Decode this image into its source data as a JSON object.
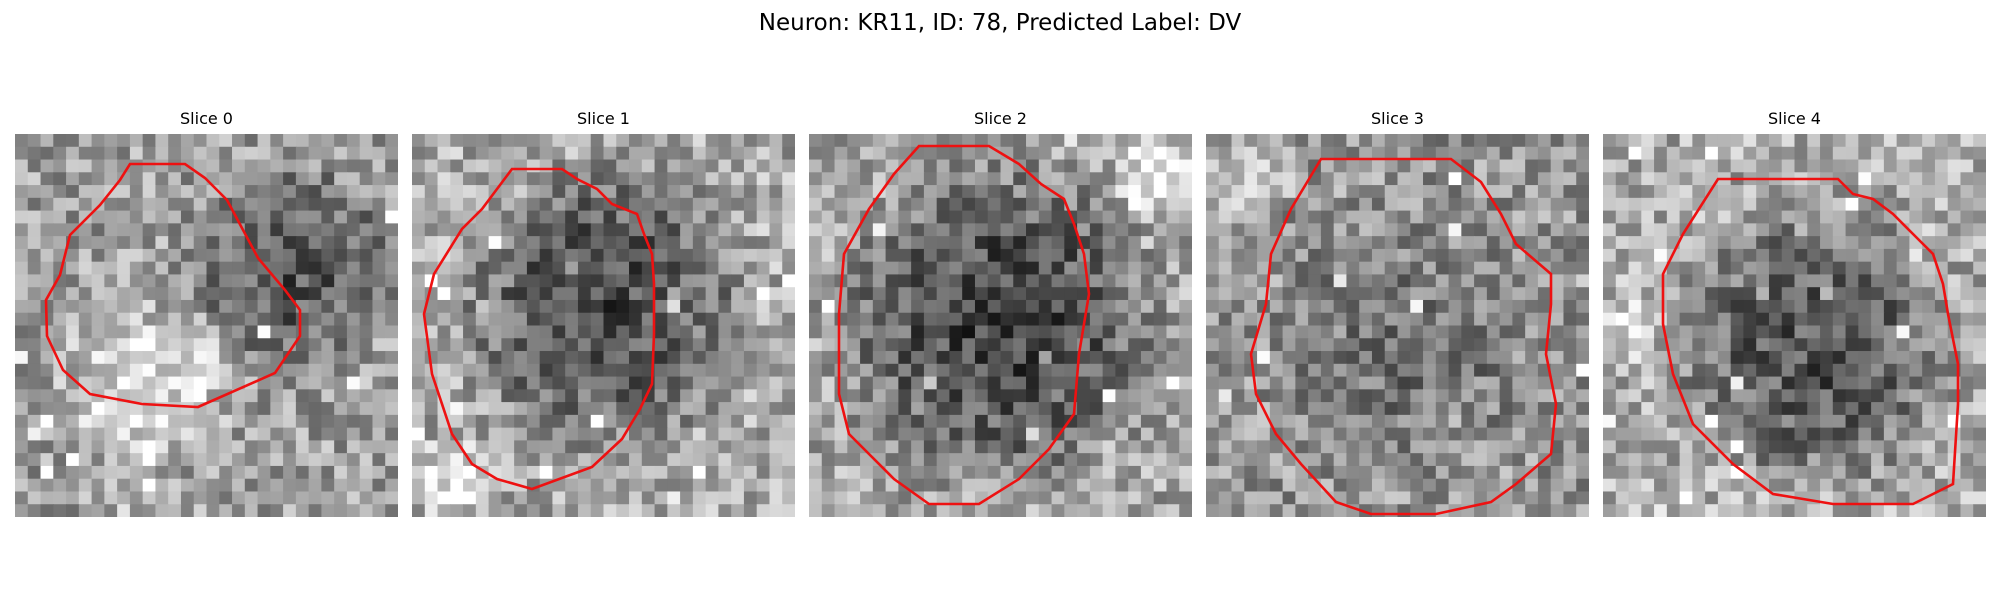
{
  "figure": {
    "title": "Neuron: KR11, ID: 78, Predicted Label: DV",
    "contour_color": "#ee1111"
  },
  "panels": [
    {
      "label": "Slice 0",
      "image_description": "grayscale noisy microscopy tile; bright lower-left blob with red contour outline, dark band upper right"
    },
    {
      "label": "Slice 1",
      "image_description": "grayscale noisy microscopy tile; large dark round cell body outlined by red contour"
    },
    {
      "label": "Slice 2",
      "image_description": "grayscale noisy microscopy tile; large dark round cell body outlined by red contour"
    },
    {
      "label": "Slice 3",
      "image_description": "grayscale noisy microscopy tile; medium-gray round cell body outlined by red contour"
    },
    {
      "label": "Slice 4",
      "image_description": "grayscale noisy microscopy tile; dark round cell body outlined by red contour, lighter left edge"
    }
  ]
}
